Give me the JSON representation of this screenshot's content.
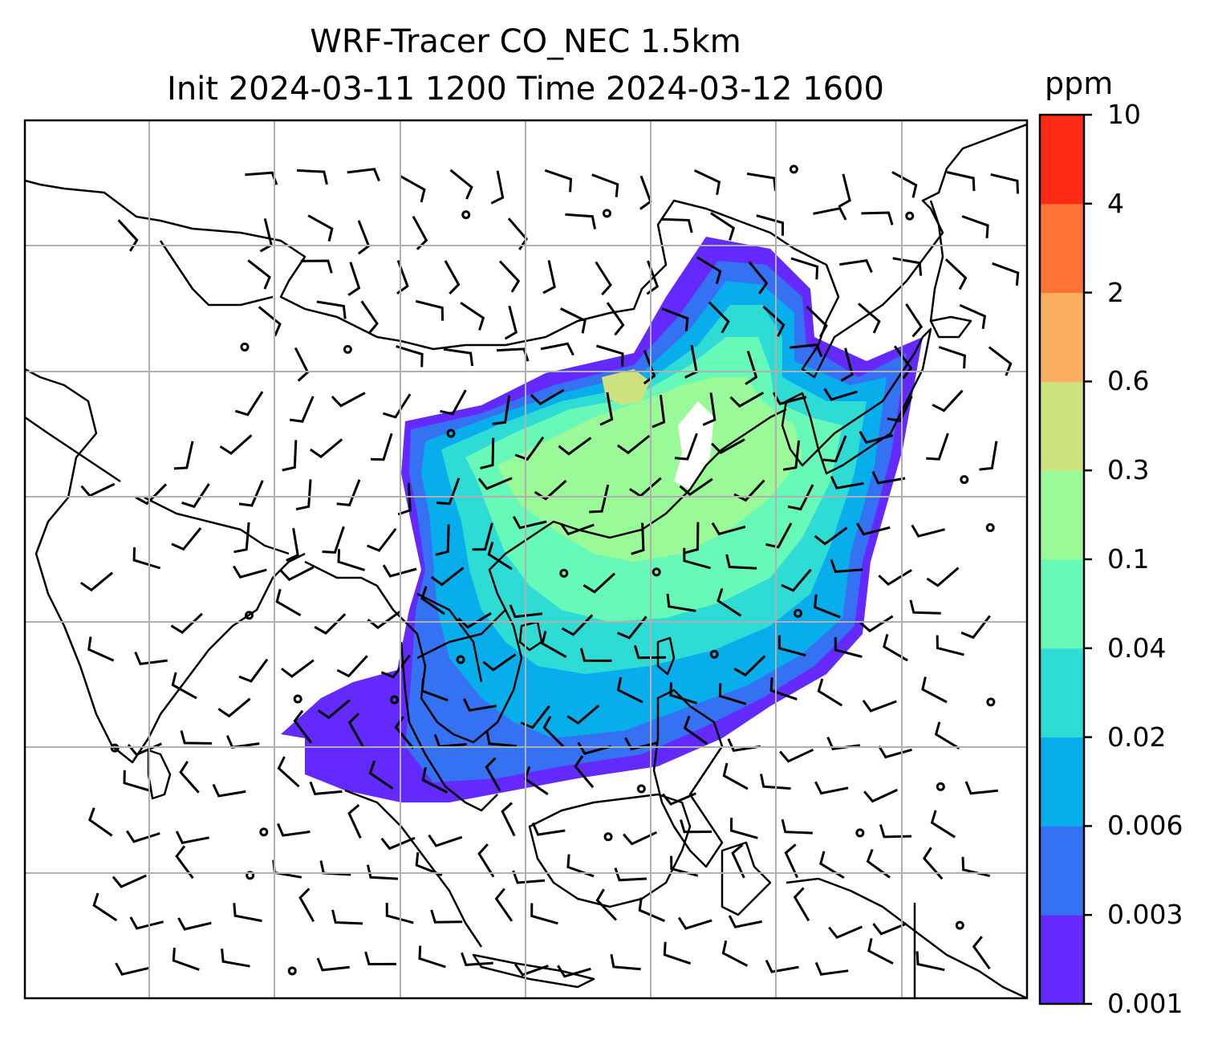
{
  "title_line1": "WRF-Tracer CO_NEC 1.5km",
  "title_line2": "Init 2024-03-11 1200 Time 2024-03-12 1600",
  "colorbar": {
    "unit": "ppm",
    "tick_labels": [
      "0.001",
      "0.003",
      "0.006",
      "0.02",
      "0.04",
      "0.1",
      "0.3",
      "0.6",
      "2",
      "4",
      "10"
    ],
    "colors": [
      "#6329fd",
      "#3571f3",
      "#08aeeb",
      "#2fdbd5",
      "#67f9b8",
      "#9bfa98",
      "#cde17e",
      "#fcaf61",
      "#ff7334",
      "#ff2b17"
    ]
  },
  "map_layers": {
    "tracer_field": "CO_NEC concentration, filled contours",
    "overlay": "wind barbs",
    "coastlines": true,
    "gridlines": true
  }
}
